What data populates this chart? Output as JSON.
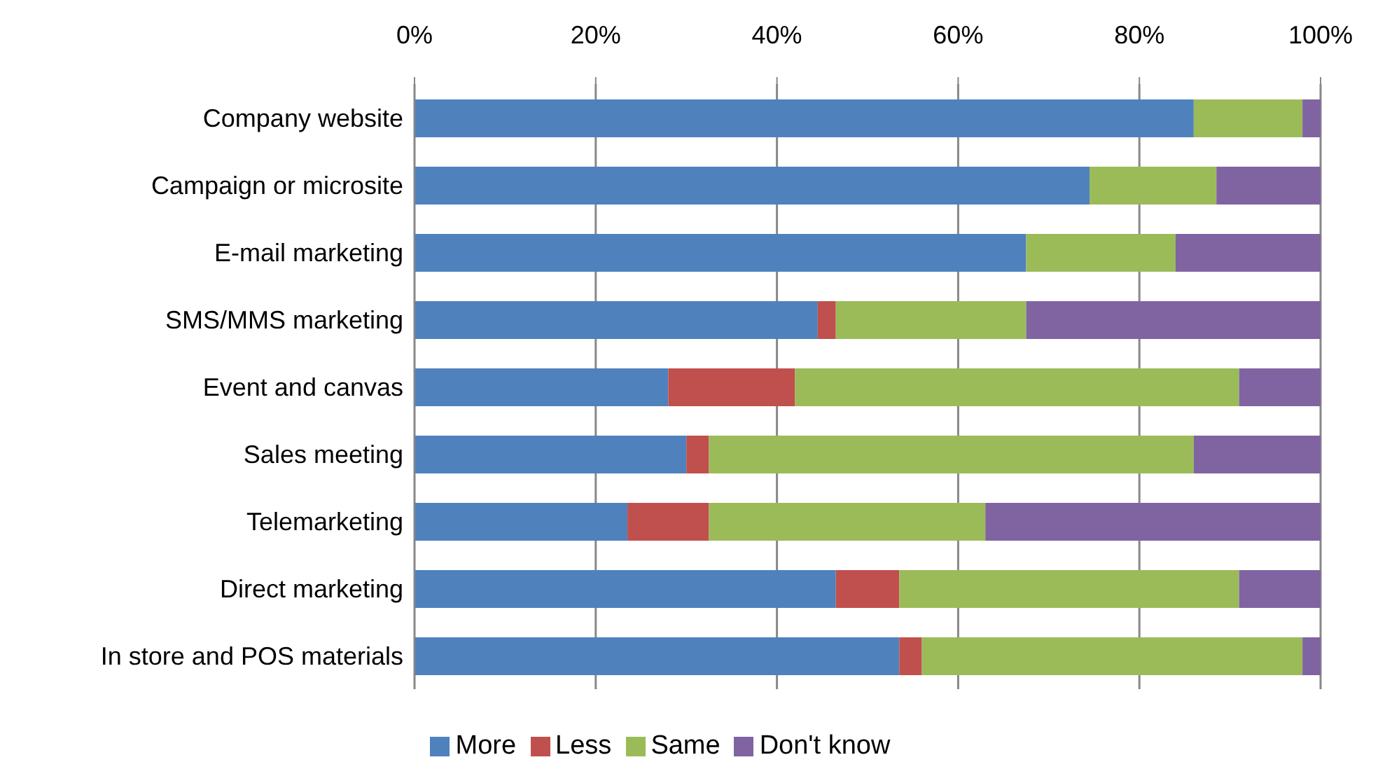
{
  "chart_data": {
    "type": "bar",
    "orientation": "horizontal",
    "stacked": true,
    "categories": [
      "Company website",
      "Campaign or microsite",
      "E-mail marketing",
      "SMS/MMS marketing",
      "Event and canvas",
      "Sales meeting",
      "Telemarketing",
      "Direct marketing",
      "In store and POS materials"
    ],
    "series": [
      {
        "name": "More",
        "color": "#4f81bd",
        "values": [
          86,
          74.5,
          67.5,
          44.5,
          28,
          30,
          23.5,
          46.5,
          53.5
        ]
      },
      {
        "name": "Less",
        "color": "#c0504d",
        "values": [
          0,
          0,
          0,
          2,
          14,
          2.5,
          9,
          7,
          2.5
        ]
      },
      {
        "name": "Same",
        "color": "#9bbb59",
        "values": [
          12,
          14,
          16.5,
          21,
          49,
          53.5,
          30.5,
          37.5,
          42
        ]
      },
      {
        "name": "Don't know",
        "color": "#8064a2",
        "values": [
          2,
          11.5,
          16,
          32.5,
          9,
          14,
          37,
          9,
          2
        ]
      }
    ],
    "xlim": [
      0,
      100
    ],
    "xticks": [
      {
        "value": 0,
        "label": "0%"
      },
      {
        "value": 20,
        "label": "20%"
      },
      {
        "value": 40,
        "label": "40%"
      },
      {
        "value": 60,
        "label": "60%"
      },
      {
        "value": 80,
        "label": "80%"
      },
      {
        "value": 100,
        "label": "100%"
      }
    ],
    "grid": "x",
    "legend": "bottom"
  }
}
